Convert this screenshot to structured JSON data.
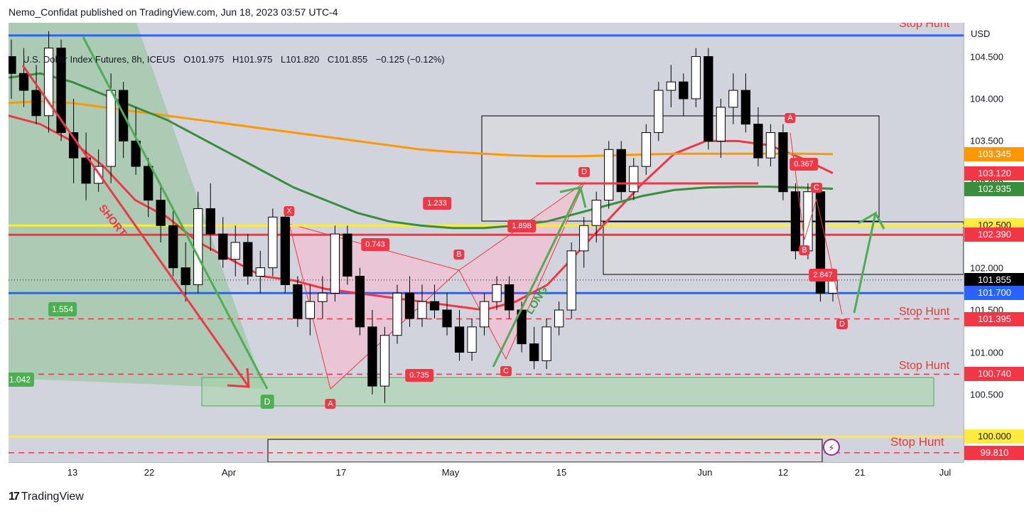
{
  "header": {
    "publisher": "Nemo_Confidat published on TradingView.com, Jun 18, 2023 03:57 UTC-4"
  },
  "legend": {
    "symbol": "U.S. Dollar Index Futures, 8h, ICEUS",
    "open": "O101.975",
    "high": "H101.975",
    "low": "L101.820",
    "close": "C101.855",
    "change": "−0.125 (−0.12%)"
  },
  "currency": "USD",
  "footer": {
    "brand": "TradingView"
  },
  "annotations": {
    "short": "SHORT",
    "long": "LONG",
    "stop_hunt_1": "Stop Hunt",
    "stop_hunt_2": "Stop Hunt",
    "stop_hunt_3": "Stop Hunt",
    "stop_hunt_4": "Stop Hunt",
    "green_ratio_1": "1.554",
    "green_ratio_2": "1.042",
    "green_point_d": "D",
    "pattern_1": {
      "X": "X",
      "A": "A",
      "B": "B",
      "C": "C",
      "D": "D",
      "r_xa": "0.743",
      "r_ab": "0.735",
      "r_bc": "1.898",
      "r_xd": "1.233"
    },
    "pattern_2": {
      "A": "A",
      "B": "B",
      "C": "C",
      "D": "D",
      "r_ac": "0.367",
      "r_bd": "2.847"
    }
  },
  "colors": {
    "background": "#d1d4dc",
    "bull": "#ffffff",
    "bear": "#000000",
    "ma_red": "#f23645",
    "ma_orange": "#ff9800",
    "ma_green": "#388e3c",
    "level_blue": "#2962ff",
    "level_yellow": "#ffeb3b",
    "pattern_red": "#f23645",
    "accent_green": "#4caf50"
  },
  "chart_data": {
    "type": "candlestick",
    "x_axis_labels": [
      "13",
      "22",
      "Apr",
      "17",
      "May",
      "15",
      "Jun",
      "12",
      "21",
      "Jul"
    ],
    "y_axis_labels": [
      "104.500",
      "104.000",
      "103.500",
      "103.000",
      "102.500",
      "102.000",
      "101.500",
      "101.000",
      "100.500"
    ],
    "ylim": [
      99.7,
      104.9
    ],
    "price_tags": [
      {
        "label": "103.345",
        "value": 103.345,
        "color": "#ff9800",
        "text_color": "#ffffff"
      },
      {
        "label": "103.120",
        "value": 103.12,
        "color": "#f23645",
        "text_color": "#ffffff"
      },
      {
        "label": "102.935",
        "value": 102.935,
        "color": "#388e3c",
        "text_color": "#ffffff"
      },
      {
        "label": "102.500",
        "value": 102.5,
        "color": "#ffeb3b",
        "text_color": "#131722"
      },
      {
        "label": "102.390",
        "value": 102.39,
        "color": "#f23645",
        "text_color": "#ffffff"
      },
      {
        "label": "101.855",
        "value": 101.855,
        "color": "#000000",
        "text_color": "#ffffff"
      },
      {
        "label": "101.700",
        "value": 101.7,
        "color": "#2962ff",
        "text_color": "#ffffff"
      },
      {
        "label": "101.395",
        "value": 101.395,
        "color": "#f23645",
        "text_color": "#ffffff"
      },
      {
        "label": "100.740",
        "value": 100.74,
        "color": "#f23645",
        "text_color": "#ffffff"
      },
      {
        "label": "100.000",
        "value": 100.0,
        "color": "#ffeb3b",
        "text_color": "#131722"
      },
      {
        "label": "99.810",
        "value": 99.81,
        "color": "#f23645",
        "text_color": "#ffffff"
      }
    ],
    "horizontal_levels": [
      {
        "value": 104.75,
        "color": "#2962ff",
        "style": "solid"
      },
      {
        "value": 102.5,
        "color": "#ffeb3b",
        "style": "solid"
      },
      {
        "value": 102.39,
        "color": "#f23645",
        "style": "solid"
      },
      {
        "value": 101.7,
        "color": "#2962ff",
        "style": "solid"
      },
      {
        "value": 101.395,
        "color": "#f23645",
        "style": "dashed"
      },
      {
        "value": 100.74,
        "color": "#f23645",
        "style": "dashed"
      },
      {
        "value": 100.0,
        "color": "#ffeb3b",
        "style": "solid"
      },
      {
        "value": 99.81,
        "color": "#f23645",
        "style": "dashed"
      }
    ],
    "last_price": 101.855,
    "moving_averages": [
      {
        "color": "#f23645",
        "values": [
          103.8,
          103.7,
          103.5,
          103.2,
          102.8,
          102.6,
          102.3,
          102.1,
          101.9,
          101.85,
          101.75,
          101.7,
          101.65,
          101.6,
          101.55,
          101.5,
          101.6,
          101.8,
          102.2,
          102.6,
          103.0,
          103.35,
          103.5,
          103.5,
          103.45,
          103.3,
          103.12
        ]
      },
      {
        "color": "#ff9800",
        "values": [
          103.95,
          103.97,
          103.95,
          103.9,
          103.85,
          103.8,
          103.75,
          103.7,
          103.65,
          103.6,
          103.55,
          103.5,
          103.45,
          103.4,
          103.37,
          103.35,
          103.33,
          103.32,
          103.32,
          103.33,
          103.34,
          103.35,
          103.35,
          103.35,
          103.35,
          103.35,
          103.345
        ]
      },
      {
        "color": "#388e3c",
        "values": [
          104.25,
          104.3,
          104.2,
          104.05,
          103.9,
          103.75,
          103.55,
          103.35,
          103.15,
          102.95,
          102.8,
          102.65,
          102.55,
          102.5,
          102.47,
          102.47,
          102.5,
          102.55,
          102.65,
          102.75,
          102.85,
          102.92,
          102.95,
          102.96,
          102.96,
          102.95,
          102.935
        ]
      }
    ],
    "ohlc": [
      [
        104.5,
        104.7,
        104.0,
        104.3
      ],
      [
        104.3,
        104.6,
        103.9,
        104.1
      ],
      [
        104.1,
        104.4,
        103.7,
        103.8
      ],
      [
        103.8,
        104.8,
        103.6,
        104.6
      ],
      [
        104.6,
        104.7,
        103.5,
        103.6
      ],
      [
        103.6,
        104.0,
        103.0,
        103.3
      ],
      [
        103.3,
        103.6,
        102.8,
        103.0
      ],
      [
        103.0,
        103.4,
        102.9,
        103.2
      ],
      [
        103.2,
        104.3,
        103.0,
        104.1
      ],
      [
        104.1,
        104.2,
        103.3,
        103.5
      ],
      [
        103.5,
        103.9,
        103.1,
        103.2
      ],
      [
        103.2,
        103.3,
        102.6,
        102.8
      ],
      [
        102.8,
        103.0,
        102.3,
        102.5
      ],
      [
        102.5,
        102.7,
        101.9,
        102.0
      ],
      [
        102.0,
        102.3,
        101.6,
        101.8
      ],
      [
        101.8,
        102.9,
        101.7,
        102.7
      ],
      [
        102.7,
        103.0,
        102.2,
        102.4
      ],
      [
        102.4,
        102.6,
        102.0,
        102.1
      ],
      [
        102.1,
        102.5,
        101.9,
        102.3
      ],
      [
        102.3,
        102.4,
        101.8,
        101.9
      ],
      [
        101.9,
        102.2,
        101.7,
        102.0
      ],
      [
        102.0,
        102.7,
        101.9,
        102.6
      ],
      [
        102.6,
        102.7,
        101.7,
        101.8
      ],
      [
        101.8,
        101.9,
        101.3,
        101.4
      ],
      [
        101.4,
        101.8,
        101.2,
        101.6
      ],
      [
        101.6,
        101.9,
        101.4,
        101.7
      ],
      [
        101.7,
        102.5,
        101.6,
        102.4
      ],
      [
        102.4,
        102.5,
        101.8,
        101.9
      ],
      [
        101.9,
        102.0,
        101.2,
        101.3
      ],
      [
        101.3,
        101.5,
        100.5,
        100.6
      ],
      [
        100.6,
        101.3,
        100.4,
        101.2
      ],
      [
        101.2,
        101.8,
        101.1,
        101.7
      ],
      [
        101.7,
        101.9,
        101.3,
        101.4
      ],
      [
        101.4,
        101.8,
        101.3,
        101.6
      ],
      [
        101.6,
        101.8,
        101.4,
        101.5
      ],
      [
        101.5,
        101.7,
        101.2,
        101.3
      ],
      [
        101.3,
        101.5,
        100.9,
        101.0
      ],
      [
        101.0,
        101.4,
        100.9,
        101.3
      ],
      [
        101.3,
        101.7,
        101.2,
        101.6
      ],
      [
        101.6,
        101.9,
        101.5,
        101.8
      ],
      [
        101.8,
        101.9,
        101.4,
        101.5
      ],
      [
        101.5,
        101.6,
        101.0,
        101.1
      ],
      [
        101.1,
        101.3,
        100.8,
        100.9
      ],
      [
        100.9,
        101.4,
        100.8,
        101.3
      ],
      [
        101.3,
        101.6,
        101.2,
        101.5
      ],
      [
        101.5,
        102.3,
        101.4,
        102.2
      ],
      [
        102.2,
        102.6,
        102.0,
        102.5
      ],
      [
        102.5,
        102.9,
        102.3,
        102.8
      ],
      [
        102.8,
        103.5,
        102.7,
        103.4
      ],
      [
        103.4,
        103.5,
        102.8,
        102.9
      ],
      [
        102.9,
        103.3,
        102.8,
        103.2
      ],
      [
        103.2,
        103.7,
        103.1,
        103.6
      ],
      [
        103.6,
        104.2,
        103.5,
        104.1
      ],
      [
        104.1,
        104.4,
        103.9,
        104.2
      ],
      [
        104.2,
        104.3,
        103.8,
        104.0
      ],
      [
        104.0,
        104.6,
        103.9,
        104.5
      ],
      [
        104.5,
        104.6,
        103.4,
        103.5
      ],
      [
        103.5,
        104.0,
        103.3,
        103.9
      ],
      [
        103.9,
        104.3,
        103.7,
        104.1
      ],
      [
        104.1,
        104.3,
        103.6,
        103.7
      ],
      [
        103.7,
        103.9,
        103.2,
        103.3
      ],
      [
        103.3,
        103.7,
        103.2,
        103.6
      ],
      [
        103.6,
        103.7,
        102.8,
        102.9
      ],
      [
        102.9,
        103.0,
        102.1,
        102.2
      ],
      [
        102.2,
        103.0,
        102.1,
        102.9
      ],
      [
        102.9,
        103.0,
        101.6,
        101.7
      ],
      [
        101.7,
        101.9,
        101.6,
        101.855
      ]
    ]
  }
}
